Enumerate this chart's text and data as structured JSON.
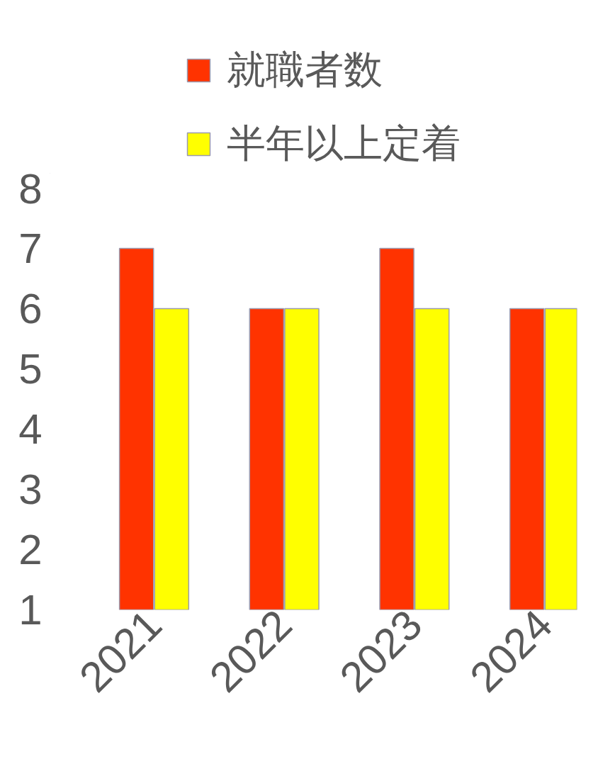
{
  "chart_data": {
    "type": "bar",
    "categories": [
      "2021",
      "2022",
      "2023",
      "2024"
    ],
    "series": [
      {
        "name": "就職者数",
        "color": "#ff3300",
        "values": [
          7,
          6,
          7,
          6
        ]
      },
      {
        "name": "半年以上定着",
        "color": "#ffff00",
        "values": [
          6,
          6,
          6,
          6
        ]
      }
    ],
    "ylim": [
      1,
      8
    ],
    "yticks": [
      1,
      2,
      3,
      4,
      5,
      6,
      7,
      8
    ],
    "grid": false,
    "legend": "top"
  }
}
